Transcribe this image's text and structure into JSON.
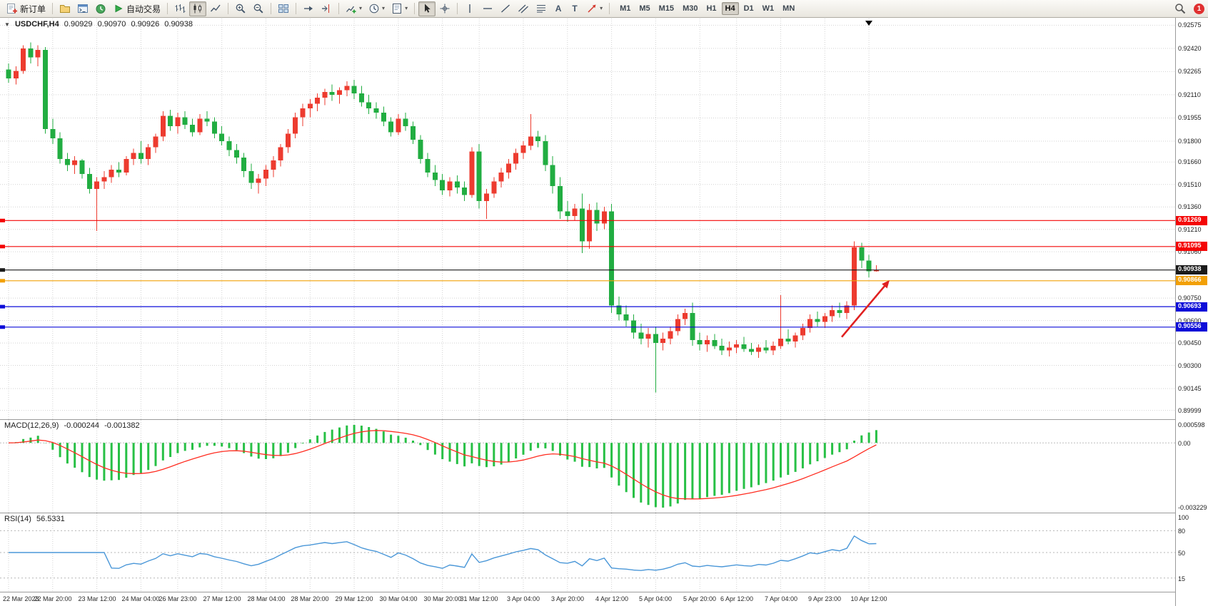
{
  "colors": {
    "candle_up": "#ed3b2f",
    "candle_down": "#21ad41",
    "macd_hist": "#27c045",
    "macd_signal": "#ff2d21",
    "rsi_line": "#4a97d8",
    "grid": "#d2d2d2",
    "line_red": "#f40606",
    "line_blue": "#0d0dd8",
    "line_orange": "#f2a007",
    "line_black": "#1a1a1a",
    "arrow": "#e02020"
  },
  "icons": {
    "caret": "▾",
    "text_tool": "A",
    "text_label_tool": "T",
    "chart_menu": "▼"
  },
  "toolbar": {
    "new_order_label": "新订单",
    "auto_trading_label": "自动交易",
    "timeframes": [
      "M1",
      "M5",
      "M15",
      "M30",
      "H1",
      "H4",
      "D1",
      "W1",
      "MN"
    ],
    "active_timeframe": "H4",
    "notification_count": "1"
  },
  "chart_data": {
    "type": "candlestick",
    "title": "USDCHF,H4",
    "ohlc": {
      "open": "0.90929",
      "high": "0.90970",
      "low": "0.90926",
      "close": "0.90938"
    },
    "y_axis": {
      "min": 0.8994,
      "max": 0.9262,
      "labels": [
        "0.92575",
        "0.92420",
        "0.92265",
        "0.92110",
        "0.91955",
        "0.91800",
        "0.91660",
        "0.91510",
        "0.91360",
        "0.91210",
        "0.91060",
        "0.90750",
        "0.90600",
        "0.90450",
        "0.90300",
        "0.90145",
        "0.89999"
      ]
    },
    "x_labels": [
      "22 Mar 2023",
      "22 Mar 20:00",
      "23 Mar 12:00",
      "24 Mar 04:00",
      "26 Mar 23:00",
      "27 Mar 12:00",
      "28 Mar 04:00",
      "28 Mar 20:00",
      "29 Mar 12:00",
      "30 Mar 04:00",
      "30 Mar 20:00",
      "31 Mar 12:00",
      "3 Apr 04:00",
      "3 Apr 20:00",
      "4 Apr 12:00",
      "5 Apr 04:00",
      "5 Apr 20:00",
      "6 Apr 12:00",
      "7 Apr 04:00",
      "9 Apr 23:00",
      "10 Apr 12:00"
    ],
    "horizontal_lines": [
      {
        "price": 0.91269,
        "label": "0.91269",
        "color": "#f40606"
      },
      {
        "price": 0.91095,
        "label": "0.91095",
        "color": "#f40606"
      },
      {
        "price": 0.90938,
        "label": "0.90938",
        "color": "#1a1a1a"
      },
      {
        "price": 0.90866,
        "label": "0.90866",
        "color": "#f2a007"
      },
      {
        "price": 0.90693,
        "label": "0.90693",
        "color": "#0d0dd8"
      },
      {
        "price": 0.90556,
        "label": "0.90556",
        "color": "#0d0dd8"
      }
    ],
    "arrow_annotation": {
      "from_index": 113.3,
      "from_price": 0.9049,
      "to_index": 119.8,
      "to_price": 0.9087,
      "color": "#e02020"
    },
    "indicators": [
      {
        "type": "macd",
        "label": "MACD(12,26,9)",
        "values": [
          "-0.000244",
          "-0.001382"
        ],
        "params": {
          "fast": 12,
          "slow": 26,
          "signal": 9
        },
        "y_labels": [
          "0.000598",
          "0.00",
          "-0.003229"
        ]
      },
      {
        "type": "rsi",
        "label": "RSI(14)",
        "value": "56.5331",
        "period": 14,
        "levels": [
          80,
          50,
          15
        ],
        "y_labels": [
          "100",
          "80",
          "50",
          "15"
        ]
      }
    ],
    "candles": [
      [
        0.9228,
        0.9232,
        0.9219,
        0.9222
      ],
      [
        0.9222,
        0.923,
        0.9218,
        0.9227
      ],
      [
        0.9227,
        0.9244,
        0.9225,
        0.9242
      ],
      [
        0.9242,
        0.9246,
        0.9232,
        0.9236
      ],
      [
        0.9236,
        0.9244,
        0.923,
        0.9241
      ],
      [
        0.9241,
        0.9243,
        0.9185,
        0.9188
      ],
      [
        0.9188,
        0.9195,
        0.9178,
        0.9182
      ],
      [
        0.9182,
        0.9186,
        0.9165,
        0.9168
      ],
      [
        0.9168,
        0.9172,
        0.916,
        0.9164
      ],
      [
        0.9164,
        0.917,
        0.9158,
        0.9167
      ],
      [
        0.9167,
        0.9168,
        0.9155,
        0.9158
      ],
      [
        0.9158,
        0.9162,
        0.9145,
        0.9148
      ],
      [
        0.9148,
        0.9156,
        0.912,
        0.9153
      ],
      [
        0.9153,
        0.916,
        0.9148,
        0.9156
      ],
      [
        0.9156,
        0.9164,
        0.9152,
        0.9161
      ],
      [
        0.9161,
        0.9166,
        0.9156,
        0.9159
      ],
      [
        0.9159,
        0.917,
        0.9157,
        0.9168
      ],
      [
        0.9168,
        0.9175,
        0.9164,
        0.9172
      ],
      [
        0.9172,
        0.918,
        0.9165,
        0.9168
      ],
      [
        0.9168,
        0.9178,
        0.9164,
        0.9176
      ],
      [
        0.9176,
        0.9185,
        0.9172,
        0.9183
      ],
      [
        0.9183,
        0.92,
        0.918,
        0.9197
      ],
      [
        0.9197,
        0.9201,
        0.9187,
        0.919
      ],
      [
        0.919,
        0.9199,
        0.9185,
        0.9196
      ],
      [
        0.9196,
        0.92,
        0.9188,
        0.9191
      ],
      [
        0.9191,
        0.9195,
        0.9183,
        0.9186
      ],
      [
        0.9186,
        0.9198,
        0.9184,
        0.9195
      ],
      [
        0.9195,
        0.92,
        0.919,
        0.9193
      ],
      [
        0.9193,
        0.9196,
        0.9182,
        0.9185
      ],
      [
        0.9185,
        0.919,
        0.9177,
        0.918
      ],
      [
        0.918,
        0.9183,
        0.917,
        0.9174
      ],
      [
        0.9174,
        0.9178,
        0.9165,
        0.9169
      ],
      [
        0.9169,
        0.9172,
        0.9156,
        0.916
      ],
      [
        0.916,
        0.9165,
        0.9148,
        0.9152
      ],
      [
        0.9152,
        0.9158,
        0.9145,
        0.9155
      ],
      [
        0.9155,
        0.9164,
        0.915,
        0.9161
      ],
      [
        0.9161,
        0.917,
        0.9156,
        0.9167
      ],
      [
        0.9167,
        0.9178,
        0.9163,
        0.9176
      ],
      [
        0.9176,
        0.9188,
        0.9172,
        0.9185
      ],
      [
        0.9185,
        0.9199,
        0.9182,
        0.9196
      ],
      [
        0.9196,
        0.9205,
        0.919,
        0.9202
      ],
      [
        0.9202,
        0.9208,
        0.9196,
        0.9205
      ],
      [
        0.9205,
        0.9212,
        0.92,
        0.9209
      ],
      [
        0.9209,
        0.9215,
        0.9204,
        0.9213
      ],
      [
        0.9213,
        0.9218,
        0.9207,
        0.9211
      ],
      [
        0.9211,
        0.9216,
        0.9205,
        0.9214
      ],
      [
        0.9214,
        0.922,
        0.921,
        0.9217
      ],
      [
        0.9217,
        0.9221,
        0.9208,
        0.9212
      ],
      [
        0.9212,
        0.9217,
        0.9203,
        0.9206
      ],
      [
        0.9206,
        0.9211,
        0.9198,
        0.9202
      ],
      [
        0.9202,
        0.9206,
        0.9195,
        0.9199
      ],
      [
        0.9199,
        0.9203,
        0.919,
        0.9193
      ],
      [
        0.9193,
        0.9196,
        0.9183,
        0.9186
      ],
      [
        0.9186,
        0.9198,
        0.9184,
        0.9195
      ],
      [
        0.9195,
        0.9199,
        0.9187,
        0.919
      ],
      [
        0.919,
        0.9193,
        0.9178,
        0.9181
      ],
      [
        0.9181,
        0.9184,
        0.9165,
        0.9168
      ],
      [
        0.9168,
        0.9172,
        0.9156,
        0.9159
      ],
      [
        0.9159,
        0.9164,
        0.915,
        0.9154
      ],
      [
        0.9154,
        0.9158,
        0.9144,
        0.9147
      ],
      [
        0.9147,
        0.9156,
        0.9143,
        0.9153
      ],
      [
        0.9153,
        0.9157,
        0.9145,
        0.9149
      ],
      [
        0.9149,
        0.9153,
        0.914,
        0.9144
      ],
      [
        0.9144,
        0.9176,
        0.9142,
        0.9173
      ],
      [
        0.9173,
        0.9178,
        0.9135,
        0.914
      ],
      [
        0.914,
        0.9148,
        0.9128,
        0.9145
      ],
      [
        0.9145,
        0.9156,
        0.9142,
        0.9153
      ],
      [
        0.9153,
        0.9162,
        0.9149,
        0.9159
      ],
      [
        0.9159,
        0.9168,
        0.9155,
        0.9165
      ],
      [
        0.9165,
        0.9175,
        0.9161,
        0.9172
      ],
      [
        0.9172,
        0.918,
        0.9168,
        0.9177
      ],
      [
        0.9177,
        0.9198,
        0.9174,
        0.9183
      ],
      [
        0.9183,
        0.9187,
        0.9176,
        0.918
      ],
      [
        0.918,
        0.9184,
        0.916,
        0.9164
      ],
      [
        0.9164,
        0.917,
        0.9145,
        0.915
      ],
      [
        0.915,
        0.9156,
        0.9128,
        0.9133
      ],
      [
        0.9133,
        0.914,
        0.9126,
        0.913
      ],
      [
        0.913,
        0.9138,
        0.9127,
        0.9135
      ],
      [
        0.9135,
        0.9145,
        0.9105,
        0.9113
      ],
      [
        0.9113,
        0.9138,
        0.9108,
        0.9134
      ],
      [
        0.9134,
        0.9139,
        0.912,
        0.9125
      ],
      [
        0.9125,
        0.9136,
        0.9121,
        0.9133
      ],
      [
        0.9133,
        0.9138,
        0.9065,
        0.907
      ],
      [
        0.907,
        0.9076,
        0.906,
        0.9064
      ],
      [
        0.9064,
        0.907,
        0.9056,
        0.906
      ],
      [
        0.906,
        0.9064,
        0.9048,
        0.9052
      ],
      [
        0.9052,
        0.9058,
        0.9044,
        0.9048
      ],
      [
        0.9048,
        0.9055,
        0.9042,
        0.9051
      ],
      [
        0.9051,
        0.9056,
        0.9012,
        0.9045
      ],
      [
        0.9045,
        0.9052,
        0.904,
        0.9048
      ],
      [
        0.9048,
        0.9056,
        0.9044,
        0.9053
      ],
      [
        0.9053,
        0.9064,
        0.905,
        0.9061
      ],
      [
        0.9061,
        0.9068,
        0.9057,
        0.9065
      ],
      [
        0.9065,
        0.9072,
        0.9043,
        0.9047
      ],
      [
        0.9047,
        0.9052,
        0.904,
        0.9044
      ],
      [
        0.9044,
        0.905,
        0.9039,
        0.9047
      ],
      [
        0.9047,
        0.9051,
        0.9041,
        0.9043
      ],
      [
        0.9043,
        0.9048,
        0.9037,
        0.904
      ],
      [
        0.904,
        0.9046,
        0.9036,
        0.9042
      ],
      [
        0.9042,
        0.9047,
        0.9038,
        0.9044
      ],
      [
        0.9044,
        0.9049,
        0.9039,
        0.9041
      ],
      [
        0.9041,
        0.9045,
        0.9037,
        0.9039
      ],
      [
        0.9039,
        0.9044,
        0.9035,
        0.9042
      ],
      [
        0.9042,
        0.9047,
        0.9038,
        0.904
      ],
      [
        0.904,
        0.9046,
        0.9037,
        0.9043
      ],
      [
        0.9043,
        0.9077,
        0.9041,
        0.9048
      ],
      [
        0.9048,
        0.9054,
        0.9044,
        0.9046
      ],
      [
        0.9046,
        0.9052,
        0.9042,
        0.905
      ],
      [
        0.905,
        0.9058,
        0.9047,
        0.9055
      ],
      [
        0.9055,
        0.9064,
        0.9052,
        0.9061
      ],
      [
        0.9061,
        0.9066,
        0.9056,
        0.9059
      ],
      [
        0.9059,
        0.9065,
        0.9055,
        0.9063
      ],
      [
        0.9063,
        0.907,
        0.9059,
        0.9067
      ],
      [
        0.9067,
        0.9072,
        0.9062,
        0.9065
      ],
      [
        0.9065,
        0.9073,
        0.9061,
        0.907
      ],
      [
        0.907,
        0.9113,
        0.9067,
        0.9109
      ],
      [
        0.9109,
        0.9112,
        0.9095,
        0.91
      ],
      [
        0.91,
        0.9104,
        0.9089,
        0.9093
      ],
      [
        0.90929,
        0.9097,
        0.90926,
        0.90938
      ]
    ]
  }
}
